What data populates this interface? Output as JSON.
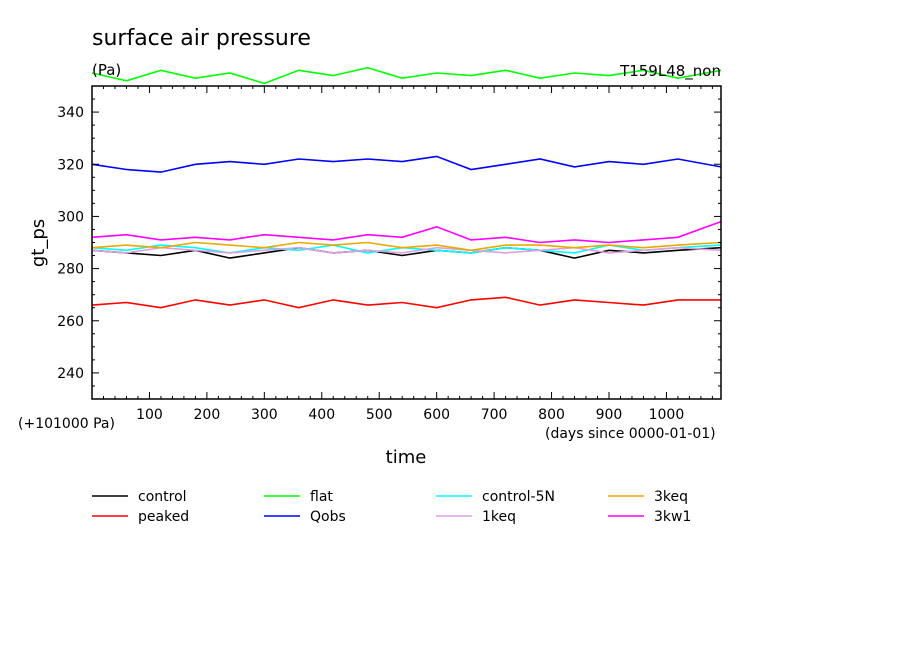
{
  "chart_data": {
    "type": "line",
    "title": "surface air pressure",
    "units": "(Pa)",
    "run_label": "T159L48_non",
    "xlabel": "time",
    "xlabel_note": "(days since 0000-01-01)",
    "ylabel": "gt_ps",
    "y_offset_note": "(+101000 Pa)",
    "xlim": [
      0,
      1095
    ],
    "ylim": [
      230,
      350
    ],
    "xticks": [
      100,
      200,
      300,
      400,
      500,
      600,
      700,
      800,
      900,
      1000
    ],
    "yticks": [
      240,
      260,
      280,
      300,
      320,
      340
    ],
    "grid": false,
    "legend_position": "bottom",
    "series": [
      {
        "name": "control",
        "color": "#000000",
        "x": [
          0,
          60,
          120,
          180,
          240,
          300,
          360,
          420,
          480,
          540,
          600,
          660,
          720,
          780,
          840,
          900,
          960,
          1020,
          1095
        ],
        "values": [
          287,
          286,
          285,
          287,
          284,
          286,
          288,
          286,
          287,
          285,
          287,
          286,
          288,
          287,
          284,
          287,
          286,
          287,
          288
        ]
      },
      {
        "name": "peaked",
        "color": "#ff0000",
        "x": [
          0,
          60,
          120,
          180,
          240,
          300,
          360,
          420,
          480,
          540,
          600,
          660,
          720,
          780,
          840,
          900,
          960,
          1020,
          1095
        ],
        "values": [
          266,
          267,
          265,
          268,
          266,
          268,
          265,
          268,
          266,
          267,
          265,
          268,
          269,
          266,
          268,
          267,
          266,
          268,
          268
        ]
      },
      {
        "name": "flat",
        "color": "#00ff00",
        "x": [
          0,
          60,
          120,
          180,
          240,
          300,
          360,
          420,
          480,
          540,
          600,
          660,
          720,
          780,
          840,
          900,
          960,
          1020,
          1095
        ],
        "values": [
          355,
          352,
          356,
          353,
          355,
          351,
          356,
          354,
          357,
          353,
          355,
          354,
          356,
          353,
          355,
          354,
          356,
          353,
          356
        ]
      },
      {
        "name": "Qobs",
        "color": "#0000ff",
        "x": [
          0,
          60,
          120,
          180,
          240,
          300,
          360,
          420,
          480,
          540,
          600,
          660,
          720,
          780,
          840,
          900,
          960,
          1020,
          1095
        ],
        "values": [
          320,
          318,
          317,
          320,
          321,
          320,
          322,
          321,
          322,
          321,
          323,
          318,
          320,
          322,
          319,
          321,
          320,
          322,
          319
        ]
      },
      {
        "name": "control-5N",
        "color": "#00ffff",
        "x": [
          0,
          60,
          120,
          180,
          240,
          300,
          360,
          420,
          480,
          540,
          600,
          660,
          720,
          780,
          840,
          900,
          960,
          1020,
          1095
        ],
        "values": [
          288,
          287,
          289,
          288,
          286,
          288,
          287,
          289,
          286,
          288,
          287,
          286,
          288,
          287,
          286,
          289,
          287,
          288,
          289
        ]
      },
      {
        "name": "1keq",
        "color": "#dda0dd",
        "x": [
          0,
          60,
          120,
          180,
          240,
          300,
          360,
          420,
          480,
          540,
          600,
          660,
          720,
          780,
          840,
          900,
          960,
          1020,
          1095
        ],
        "values": [
          287,
          286,
          288,
          287,
          286,
          287,
          288,
          286,
          287,
          286,
          288,
          287,
          286,
          287,
          288,
          286,
          287,
          288,
          287
        ]
      },
      {
        "name": "3keq",
        "color": "#e6aa00",
        "x": [
          0,
          60,
          120,
          180,
          240,
          300,
          360,
          420,
          480,
          540,
          600,
          660,
          720,
          780,
          840,
          900,
          960,
          1020,
          1095
        ],
        "values": [
          288,
          289,
          288,
          290,
          289,
          288,
          290,
          289,
          290,
          288,
          289,
          287,
          289,
          289,
          288,
          289,
          288,
          289,
          290
        ]
      },
      {
        "name": "3kw1",
        "color": "#ff00ff",
        "x": [
          0,
          60,
          120,
          180,
          240,
          300,
          360,
          420,
          480,
          540,
          600,
          660,
          720,
          780,
          840,
          900,
          960,
          1020,
          1095
        ],
        "values": [
          292,
          293,
          291,
          292,
          291,
          293,
          292,
          291,
          293,
          292,
          296,
          291,
          292,
          290,
          291,
          290,
          291,
          292,
          298
        ]
      }
    ]
  }
}
